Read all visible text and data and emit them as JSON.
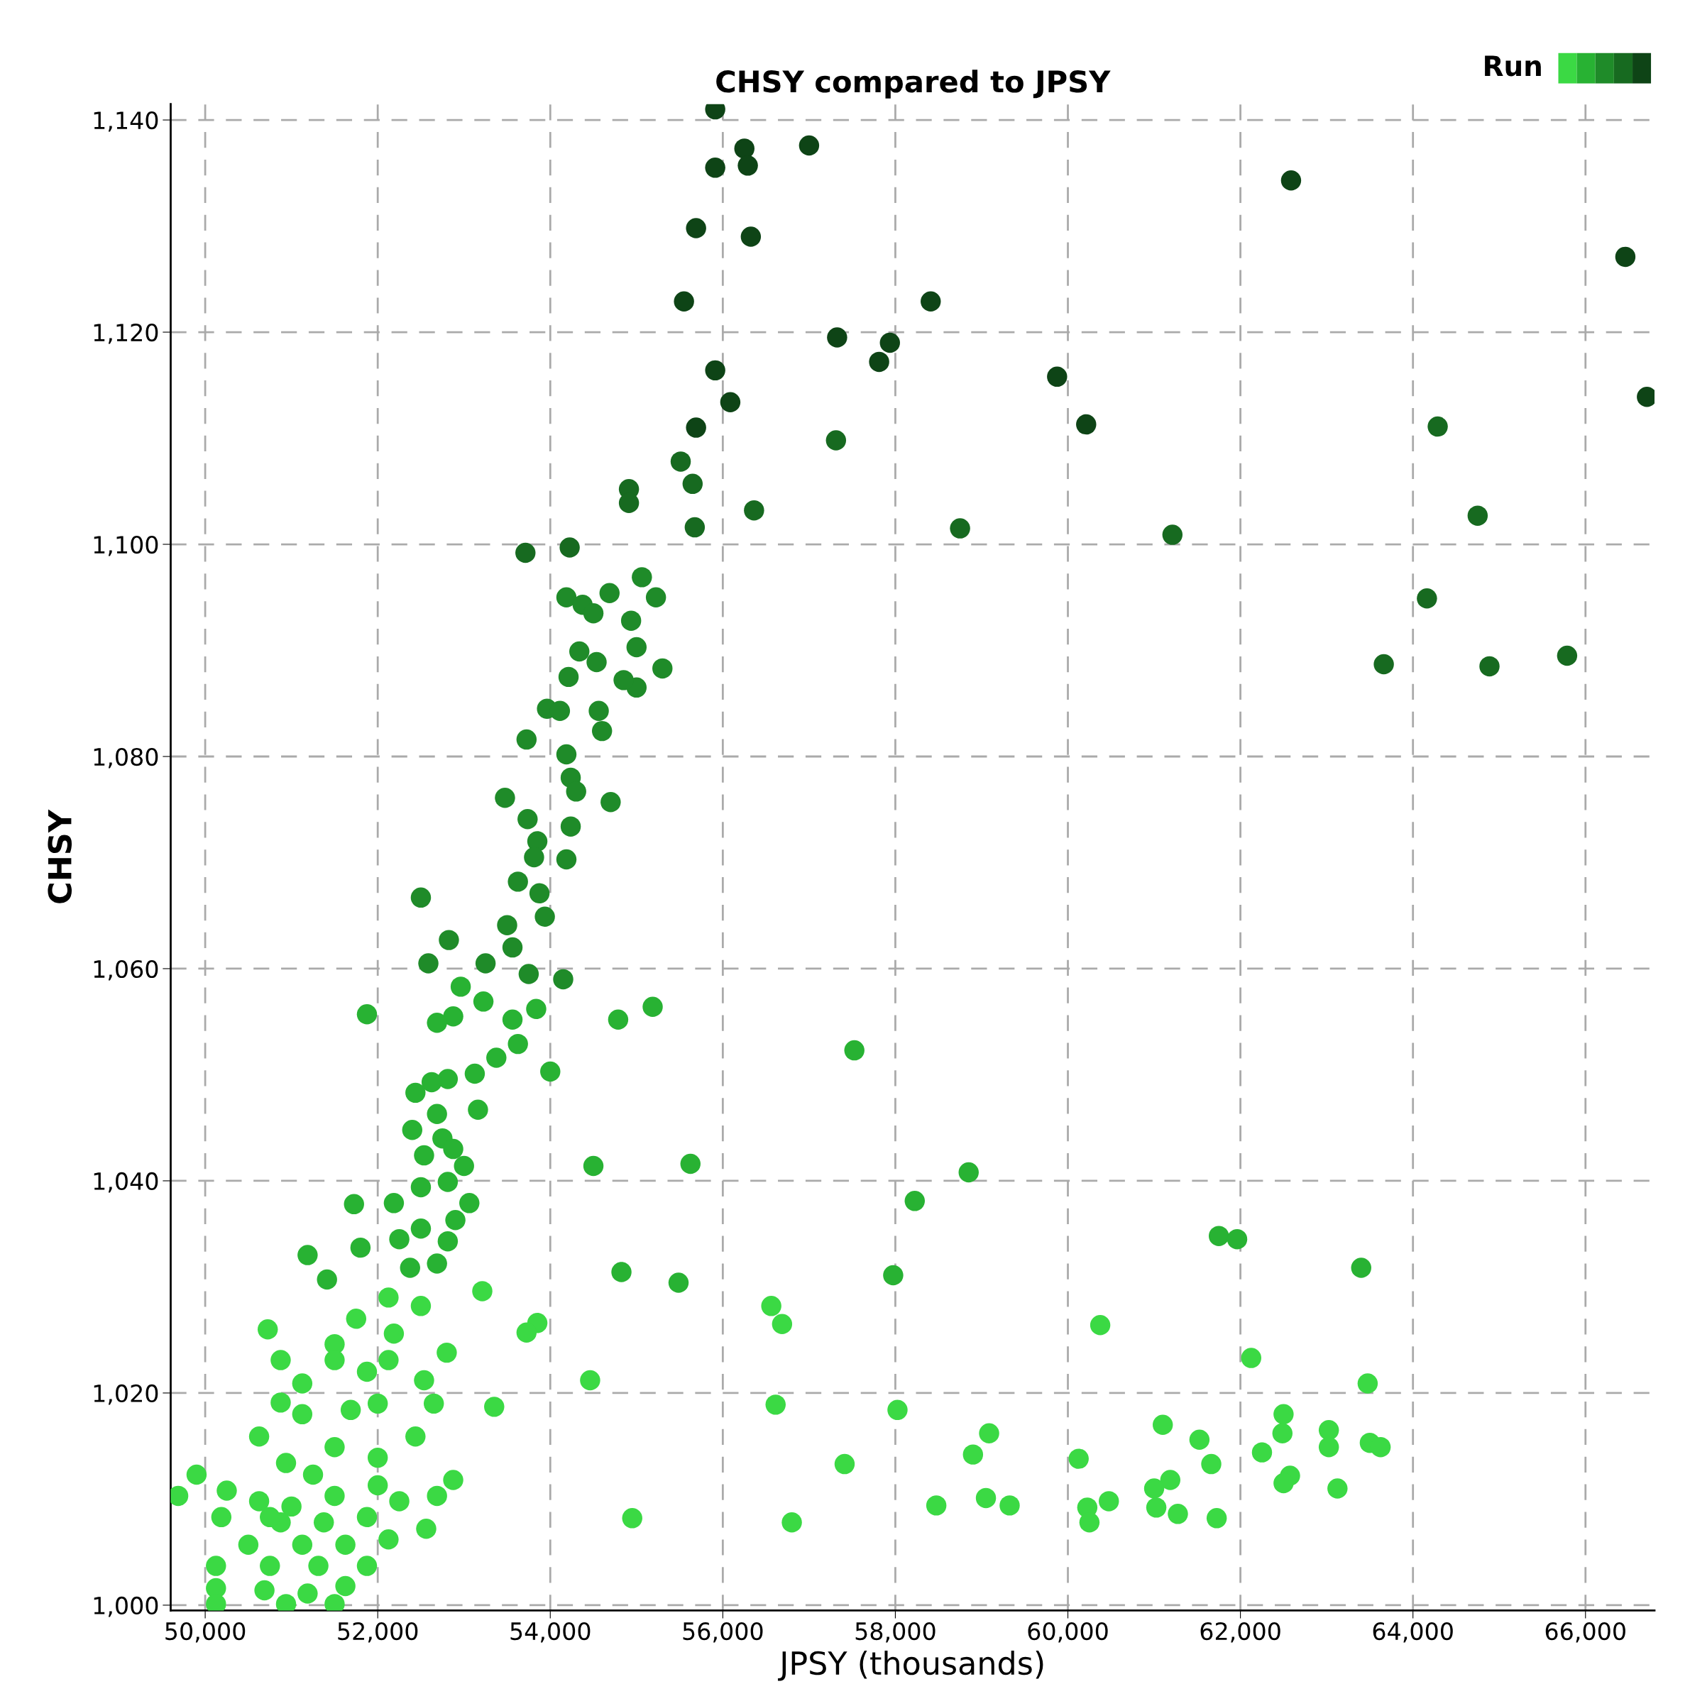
{
  "chart_data": {
    "type": "scatter",
    "title": "CHSY compared to JPSY",
    "xlabel": "JPSY (thousands)",
    "ylabel": "CHSY",
    "clabel": "Run",
    "marker": "circle",
    "grid": true,
    "xlim": [
      49600,
      66800
    ],
    "ylim": [
      999.5,
      1141.5
    ],
    "xticks": [
      {
        "value": 50000,
        "label": "50,000"
      },
      {
        "value": 52000,
        "label": "52,000"
      },
      {
        "value": 54000,
        "label": "54,000"
      },
      {
        "value": 56000,
        "label": "56,000"
      },
      {
        "value": 58000,
        "label": "58,000"
      },
      {
        "value": 60000,
        "label": "60,000"
      },
      {
        "value": 62000,
        "label": "62,000"
      },
      {
        "value": 64000,
        "label": "64,000"
      },
      {
        "value": 66000,
        "label": "66,000"
      }
    ],
    "yticks": [
      {
        "value": 1000,
        "label": "1,000"
      },
      {
        "value": 1020,
        "label": "1,020"
      },
      {
        "value": 1040,
        "label": "1,040"
      },
      {
        "value": 1060,
        "label": "1,060"
      },
      {
        "value": 1080,
        "label": "1,080"
      },
      {
        "value": 1100,
        "label": "1,100"
      },
      {
        "value": 1120,
        "label": "1,120"
      },
      {
        "value": 1140,
        "label": "1,140"
      }
    ],
    "series": [
      {
        "color": "#3bd944",
        "x": [
          53212,
          52125,
          56562,
          52500,
          51750,
          56687,
          60375,
          50725,
          53850,
          53725,
          52187,
          51500,
          52800,
          50875,
          62125,
          51500,
          54462,
          63475,
          51875,
          52537,
          53350,
          56612,
          58025,
          50875,
          51125,
          52000,
          52650,
          62500,
          61100,
          63025,
          59087,
          61525,
          63500,
          63625,
          62487,
          58900,
          60125,
          62250,
          63025,
          57412,
          61662,
          50625,
          51500,
          52437,
          50937,
          52000,
          49900,
          49687,
          52875,
          52687,
          62575,
          61187,
          61000,
          63125,
          62500,
          59050,
          59325,
          58475,
          60475,
          60225,
          61025,
          61275,
          61725,
          54950,
          56800,
          60250,
          50250,
          50625,
          51000,
          51500,
          52000,
          52250,
          52562,
          50187,
          50875,
          51375,
          51875,
          50500,
          51125,
          51625,
          52125,
          50125,
          50750,
          51312,
          51875,
          50125,
          50687,
          51187,
          51625,
          50937,
          51500,
          50125,
          50750,
          51250,
          51687,
          51125,
          52125
        ],
        "values": [
          1029.6,
          1029.0,
          1028.2,
          1028.2,
          1027.0,
          1026.5,
          1026.4,
          1026.0,
          1026.6,
          1025.7,
          1025.6,
          1024.6,
          1023.8,
          1023.1,
          1023.3,
          1023.1,
          1021.2,
          1020.9,
          1022.0,
          1021.2,
          1018.7,
          1018.9,
          1018.4,
          1019.1,
          1018.0,
          1019.0,
          1019.0,
          1018.0,
          1017.0,
          1016.5,
          1016.2,
          1015.6,
          1015.3,
          1014.9,
          1016.2,
          1014.2,
          1013.8,
          1014.4,
          1014.9,
          1013.3,
          1013.3,
          1015.9,
          1014.9,
          1015.9,
          1013.4,
          1013.9,
          1012.3,
          1010.3,
          1011.8,
          1010.3,
          1012.2,
          1011.8,
          1011.0,
          1011.0,
          1011.5,
          1010.1,
          1009.4,
          1009.4,
          1009.8,
          1009.2,
          1009.2,
          1008.6,
          1008.2,
          1008.2,
          1007.8,
          1007.8,
          1010.8,
          1009.8,
          1009.3,
          1010.3,
          1011.3,
          1009.8,
          1007.2,
          1008.3,
          1007.8,
          1007.8,
          1008.3,
          1005.7,
          1005.7,
          1005.7,
          1006.2,
          1003.7,
          1003.7,
          1003.7,
          1003.7,
          1001.6,
          1001.4,
          1001.1,
          1001.8,
          1000.1,
          1000.1,
          1000.1,
          1008.3,
          1012.3,
          1018.4,
          1020.9,
          1023.1
        ]
      },
      {
        "color": "#28b233",
        "x": [
          51875,
          52962,
          53225,
          52875,
          52687,
          53562,
          53837,
          55187,
          54787,
          57525,
          53625,
          53375,
          54000,
          53125,
          52812,
          52625,
          52437,
          53162,
          52687,
          52400,
          52750,
          52875,
          52537,
          53000,
          54500,
          55625,
          58850,
          52812,
          52500,
          52187,
          51725,
          58225,
          53062,
          52900,
          52500,
          52250,
          61750,
          61962,
          51800,
          51187,
          52812,
          52687,
          63400,
          52375,
          54825,
          57975,
          55487,
          51412
        ],
        "values": [
          1055.7,
          1058.3,
          1056.9,
          1055.5,
          1054.9,
          1055.2,
          1056.2,
          1056.4,
          1055.2,
          1052.3,
          1052.9,
          1051.6,
          1050.3,
          1050.1,
          1049.6,
          1049.3,
          1048.3,
          1046.7,
          1046.3,
          1044.8,
          1044.0,
          1043.0,
          1042.4,
          1041.4,
          1041.4,
          1041.6,
          1040.8,
          1039.9,
          1039.4,
          1037.9,
          1037.8,
          1038.1,
          1037.9,
          1036.3,
          1035.5,
          1034.5,
          1034.8,
          1034.5,
          1033.7,
          1033.0,
          1034.3,
          1032.2,
          1031.8,
          1031.8,
          1031.4,
          1031.1,
          1030.4,
          1030.7
        ]
      },
      {
        "color": "#1f8b29",
        "x": [
          54187,
          54375,
          54500,
          54687,
          55062,
          55225,
          54937,
          55000,
          55300,
          54337,
          54537,
          54212,
          55000,
          54850,
          53962,
          54112,
          54562,
          53725,
          54600,
          54187,
          54237,
          54300,
          54700,
          53475,
          53737,
          54237,
          53850,
          54187,
          53812,
          53625,
          53875,
          53937,
          53500,
          52500,
          53562,
          52825,
          52587,
          53250,
          53750,
          54150
        ],
        "values": [
          1095.0,
          1094.3,
          1093.5,
          1095.4,
          1096.9,
          1095.0,
          1092.8,
          1090.3,
          1088.3,
          1089.9,
          1088.9,
          1087.5,
          1086.5,
          1087.2,
          1084.5,
          1084.3,
          1084.3,
          1081.6,
          1082.4,
          1080.2,
          1078.0,
          1076.7,
          1075.7,
          1076.1,
          1074.1,
          1073.4,
          1072.0,
          1070.3,
          1070.5,
          1068.2,
          1067.1,
          1064.9,
          1064.1,
          1066.7,
          1062.0,
          1062.7,
          1060.5,
          1060.5,
          1059.5,
          1059.0
        ]
      },
      {
        "color": "#176a20",
        "x": [
          55512,
          55650,
          54912,
          54912,
          56362,
          55675,
          58750,
          61212,
          53712,
          54225,
          64162,
          63662,
          64887,
          65787,
          57312,
          64287,
          64750
        ],
        "values": [
          1107.8,
          1105.7,
          1105.2,
          1103.9,
          1103.2,
          1101.6,
          1101.5,
          1100.9,
          1099.2,
          1099.7,
          1094.9,
          1088.7,
          1088.5,
          1089.5,
          1109.8,
          1111.1,
          1102.7
        ]
      },
      {
        "color": "#0e4416",
        "x": [
          55912,
          55912,
          56250,
          56290,
          57000,
          55690,
          56325,
          55550,
          58410,
          57325,
          57937,
          57812,
          62587,
          66462,
          66712,
          55912,
          56087,
          55690,
          59875,
          60212
        ],
        "values": [
          1141.0,
          1135.5,
          1137.3,
          1135.7,
          1137.6,
          1129.8,
          1129.0,
          1122.9,
          1122.9,
          1119.5,
          1119.0,
          1117.2,
          1134.3,
          1127.1,
          1113.9,
          1116.4,
          1113.4,
          1111.0,
          1115.8,
          1111.3
        ]
      }
    ]
  }
}
